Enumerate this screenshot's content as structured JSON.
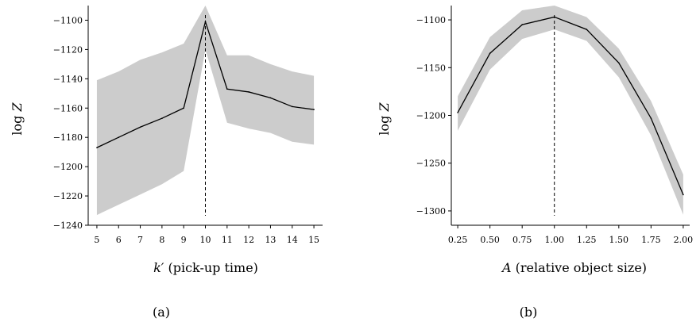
{
  "chart_data": [
    {
      "type": "line",
      "caption": "(a)",
      "xlabel_var": "k′",
      "xlabel_text": " (pick-up time)",
      "ylabel_main": "log ",
      "ylabel_var": "Z",
      "x": [
        5,
        6,
        7,
        8,
        9,
        10,
        11,
        12,
        13,
        14,
        15
      ],
      "y": [
        -1187,
        -1180,
        -1173,
        -1167,
        -1160,
        -1101,
        -1147,
        -1149,
        -1153,
        -1159,
        -1161
      ],
      "band_upper": [
        -1141,
        -1135,
        -1127,
        -1122,
        -1116,
        -1090,
        -1124,
        -1124,
        -1130,
        -1135,
        -1138
      ],
      "band_lower": [
        -1233,
        -1226,
        -1219,
        -1212,
        -1203,
        -1120,
        -1170,
        -1174,
        -1177,
        -1183,
        -1185
      ],
      "marker_x": 10,
      "xlim": [
        4.6,
        15.4
      ],
      "ylim": [
        -1240,
        -1090
      ],
      "xticks": [
        "5",
        "6",
        "7",
        "8",
        "9",
        "10",
        "11",
        "12",
        "13",
        "14",
        "15"
      ],
      "yticks": [
        -1240,
        -1220,
        -1200,
        -1180,
        -1160,
        -1140,
        -1120,
        -1100
      ],
      "ytick_labels": [
        "−1240",
        "−1220",
        "−1200",
        "−1180",
        "−1160",
        "−1140",
        "−1120",
        "−1100"
      ],
      "line_color": "#000000",
      "band_color": "#cccccc"
    },
    {
      "type": "line",
      "caption": "(b)",
      "xlabel_var": "A",
      "xlabel_text": " (relative object size)",
      "ylabel_main": "log ",
      "ylabel_var": "Z",
      "x": [
        0.25,
        0.5,
        0.75,
        1.0,
        1.25,
        1.5,
        1.75,
        2.0
      ],
      "y": [
        -1197,
        -1135,
        -1105,
        -1097,
        -1110,
        -1145,
        -1203,
        -1283
      ],
      "band_upper": [
        -1180,
        -1118,
        -1090,
        -1085,
        -1097,
        -1130,
        -1185,
        -1262
      ],
      "band_lower": [
        -1216,
        -1152,
        -1120,
        -1110,
        -1122,
        -1160,
        -1221,
        -1304
      ],
      "marker_x": 1.0,
      "xlim": [
        0.2,
        2.05
      ],
      "ylim": [
        -1315,
        -1085
      ],
      "xticks": [
        "0.25",
        "0.50",
        "0.75",
        "1.00",
        "1.25",
        "1.50",
        "1.75",
        "2.00"
      ],
      "yticks": [
        -1300,
        -1250,
        -1200,
        -1150,
        -1100
      ],
      "ytick_labels": [
        "−1300",
        "−1250",
        "−1200",
        "−1150",
        "−1100"
      ],
      "line_color": "#000000",
      "band_color": "#cccccc"
    }
  ]
}
